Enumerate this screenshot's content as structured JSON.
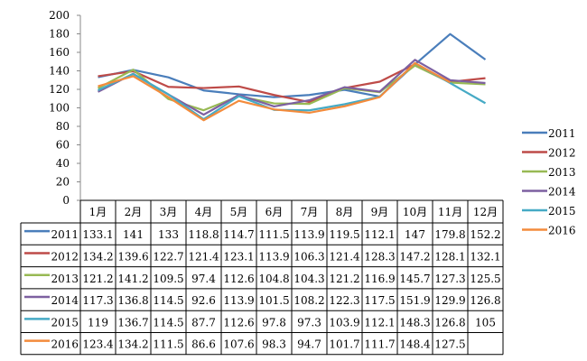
{
  "chart_data": {
    "type": "line",
    "categories": [
      "1月",
      "2月",
      "3月",
      "4月",
      "5月",
      "6月",
      "7月",
      "8月",
      "9月",
      "10月",
      "11月",
      "12月"
    ],
    "ylim": [
      0,
      200
    ],
    "yticks": [
      0,
      20,
      40,
      60,
      80,
      100,
      120,
      140,
      160,
      180,
      200
    ],
    "grid": false,
    "legend_position": "right",
    "data_table": true,
    "series": [
      {
        "name": "2011",
        "color": "#4a7ebb",
        "values": [
          133.1,
          141,
          133,
          118.8,
          114.7,
          111.5,
          113.9,
          119.5,
          112.1,
          147,
          179.8,
          152.2
        ],
        "labels": [
          "133.1",
          "141",
          "133",
          "118.8",
          "114.7",
          "111.5",
          "113.9",
          "119.5",
          "112.1",
          "147",
          "179.8",
          "152.2"
        ]
      },
      {
        "name": "2012",
        "color": "#be4b48",
        "values": [
          134.2,
          139.6,
          122.7,
          121.4,
          123.1,
          113.9,
          106.3,
          121.4,
          128.3,
          147.2,
          128.1,
          132.1
        ],
        "labels": [
          "134.2",
          "139.6",
          "122.7",
          "121.4",
          "123.1",
          "113.9",
          "106.3",
          "121.4",
          "128.3",
          "147.2",
          "128.1",
          "132.1"
        ]
      },
      {
        "name": "2013",
        "color": "#98b954",
        "values": [
          121.2,
          141.2,
          109.5,
          97.4,
          112.6,
          104.8,
          104.3,
          121.2,
          116.9,
          145.7,
          127.3,
          125.5
        ],
        "labels": [
          "121.2",
          "141.2",
          "109.5",
          "97.4",
          "112.6",
          "104.8",
          "104.3",
          "121.2",
          "116.9",
          "145.7",
          "127.3",
          "125.5"
        ]
      },
      {
        "name": "2014",
        "color": "#7d60a0",
        "values": [
          117.3,
          136.8,
          114.5,
          92.6,
          113.9,
          101.5,
          108.2,
          122.3,
          117.5,
          151.9,
          129.9,
          126.8
        ],
        "labels": [
          "117.3",
          "136.8",
          "114.5",
          "92.6",
          "113.9",
          "101.5",
          "108.2",
          "122.3",
          "117.5",
          "151.9",
          "129.9",
          "126.8"
        ]
      },
      {
        "name": "2015",
        "color": "#46aac5",
        "values": [
          119,
          136.7,
          114.5,
          87.7,
          112.6,
          97.8,
          97.3,
          103.9,
          112.1,
          148.3,
          126.8,
          105
        ],
        "labels": [
          "119",
          "136.7",
          "114.5",
          "87.7",
          "112.6",
          "97.8",
          "97.3",
          "103.9",
          "112.1",
          "148.3",
          "126.8",
          "105"
        ]
      },
      {
        "name": "2016",
        "color": "#f38b3c",
        "values": [
          123.4,
          134.2,
          111.5,
          86.6,
          107.6,
          98.3,
          94.7,
          101.7,
          111.7,
          148.4,
          127.5,
          null
        ],
        "labels": [
          "123.4",
          "134.2",
          "111.5",
          "86.6",
          "107.6",
          "98.3",
          "94.7",
          "101.7",
          "111.7",
          "148.4",
          "127.5",
          ""
        ]
      }
    ]
  }
}
